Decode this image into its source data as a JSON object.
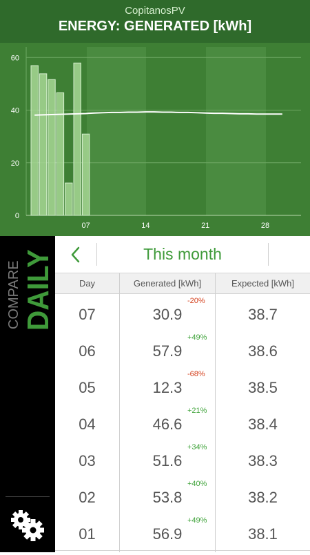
{
  "header": {
    "app_name": "CopitanosPV",
    "title": "ENERGY: GENERATED [kWh]"
  },
  "chart_data": {
    "type": "bar",
    "x_ticks": [
      "07",
      "14",
      "21",
      "28"
    ],
    "y_ticks": [
      "0",
      "20",
      "40",
      "60"
    ],
    "ylim": [
      0,
      64
    ],
    "days": [
      1,
      2,
      3,
      4,
      5,
      6,
      7
    ],
    "values": [
      56.9,
      53.8,
      51.6,
      46.6,
      12.3,
      57.9,
      30.9
    ],
    "expected": [
      38.1,
      38.2,
      38.3,
      38.4,
      38.5,
      38.6,
      38.7,
      38.9,
      39.0,
      39.1,
      39.1,
      39.2,
      39.2,
      39.3,
      39.3,
      39.2,
      39.2,
      39.1,
      39.1,
      39.0,
      38.9,
      38.8,
      38.8,
      38.7,
      38.6,
      38.6,
      38.5,
      38.5,
      38.5,
      38.5
    ],
    "grid": true,
    "colors": {
      "background": "#3e7f34",
      "band": "#4a8b40",
      "bar_fill": "#a7d795",
      "bar_stroke": "#d6efcf",
      "line": "#ffffff"
    }
  },
  "sidebar": {
    "compare_label": "COMPARE",
    "mode_label": "DAILY",
    "settings_icon": "gear-icon"
  },
  "nav": {
    "back_icon": "chevron-left-icon",
    "period": "This month"
  },
  "table": {
    "headers": {
      "day": "Day",
      "generated": "Generated [kWh]",
      "expected": "Expected [kWh]"
    },
    "rows": [
      {
        "day": "07",
        "generated": "30.9",
        "delta": "-20%",
        "trend": "neg",
        "expected": "38.7"
      },
      {
        "day": "06",
        "generated": "57.9",
        "delta": "+49%",
        "trend": "pos",
        "expected": "38.6"
      },
      {
        "day": "05",
        "generated": "12.3",
        "delta": "-68%",
        "trend": "neg",
        "expected": "38.5"
      },
      {
        "day": "04",
        "generated": "46.6",
        "delta": "+21%",
        "trend": "pos",
        "expected": "38.4"
      },
      {
        "day": "03",
        "generated": "51.6",
        "delta": "+34%",
        "trend": "pos",
        "expected": "38.3"
      },
      {
        "day": "02",
        "generated": "53.8",
        "delta": "+40%",
        "trend": "pos",
        "expected": "38.2"
      },
      {
        "day": "01",
        "generated": "56.9",
        "delta": "+49%",
        "trend": "pos",
        "expected": "38.1"
      }
    ]
  },
  "colors": {
    "header_bg": "#2f6a2b",
    "accent": "#3f9a3a",
    "positive": "#3fa33a",
    "negative": "#d4411e"
  }
}
